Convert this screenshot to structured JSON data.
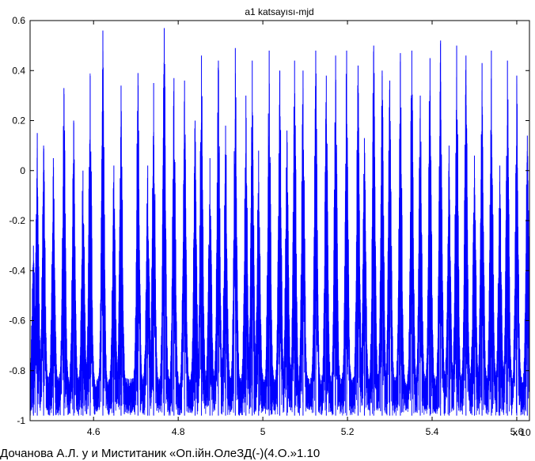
{
  "chart_data": {
    "type": "line",
    "title": "a1 katsayısı-mjd",
    "xlabel": "",
    "ylabel": "",
    "x_exponent_label": "x 10",
    "xlim": [
      4.45,
      5.63
    ],
    "ylim": [
      -1,
      0.6
    ],
    "x_ticks": [
      4.6,
      4.8,
      5,
      5.2,
      5.4,
      5.6
    ],
    "x_tick_labels": [
      "4.6",
      "4.8",
      "5",
      "5.2",
      "5.4",
      "5.6"
    ],
    "y_ticks": [
      0.6,
      0.4,
      0.2,
      0,
      -0.2,
      -0.4,
      -0.6,
      -0.8,
      -1
    ],
    "y_tick_labels": [
      "0.6",
      "0.4",
      "0.2",
      "0",
      "-0.2",
      "-0.4",
      "-0.6",
      "-0.8",
      "-1"
    ],
    "grid": false,
    "series": [
      {
        "color": "#0000ff",
        "baseline": -0.85,
        "noise_min": -0.98,
        "peaks": [
          [
            4.458,
            -0.3
          ],
          [
            4.467,
            0.15
          ],
          [
            4.482,
            0.1
          ],
          [
            4.505,
            0.05
          ],
          [
            4.53,
            0.33
          ],
          [
            4.553,
            0.2
          ],
          [
            4.575,
            0.0
          ],
          [
            4.592,
            0.38
          ],
          [
            4.622,
            0.56
          ],
          [
            4.648,
            0.02
          ],
          [
            4.665,
            0.34
          ],
          [
            4.705,
            0.39
          ],
          [
            4.728,
            0.02
          ],
          [
            4.742,
            0.35
          ],
          [
            4.767,
            0.57
          ],
          [
            4.79,
            0.37
          ],
          [
            4.815,
            0.36
          ],
          [
            4.84,
            0.2
          ],
          [
            4.855,
            0.46
          ],
          [
            4.875,
            0.05
          ],
          [
            4.895,
            0.44
          ],
          [
            4.912,
            0.18
          ],
          [
            4.935,
            0.49
          ],
          [
            4.96,
            0.3
          ],
          [
            4.975,
            0.44
          ],
          [
            4.99,
            0.08
          ],
          [
            5.015,
            0.48
          ],
          [
            5.04,
            0.4
          ],
          [
            5.057,
            0.16
          ],
          [
            5.075,
            0.44
          ],
          [
            5.095,
            0.4
          ],
          [
            5.125,
            0.48
          ],
          [
            5.15,
            0.38
          ],
          [
            5.172,
            0.46
          ],
          [
            5.198,
            0.48
          ],
          [
            5.225,
            0.42
          ],
          [
            5.24,
            0.13
          ],
          [
            5.262,
            0.5
          ],
          [
            5.282,
            0.4
          ],
          [
            5.3,
            0.36
          ],
          [
            5.325,
            0.47
          ],
          [
            5.352,
            0.48
          ],
          [
            5.372,
            0.3
          ],
          [
            5.395,
            0.45
          ],
          [
            5.42,
            0.52
          ],
          [
            5.44,
            0.1
          ],
          [
            5.458,
            0.5
          ],
          [
            5.48,
            0.46
          ],
          [
            5.5,
            0.06
          ],
          [
            5.518,
            0.43
          ],
          [
            5.54,
            0.48
          ],
          [
            5.56,
            0.02
          ],
          [
            5.578,
            0.44
          ],
          [
            5.6,
            0.38
          ],
          [
            5.625,
            0.14
          ]
        ]
      }
    ]
  },
  "caption": {
    "text": "Дочанова А.Л. у и Миститаник «Оп.ійн.ОлеЗД(-)(4.О.»1.10"
  }
}
